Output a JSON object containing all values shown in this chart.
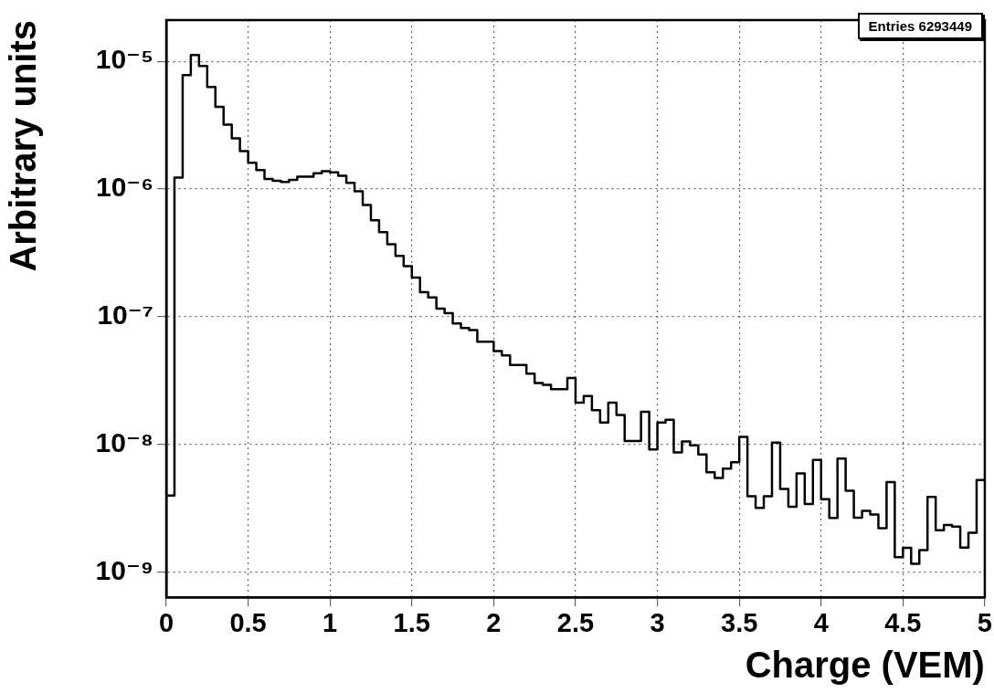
{
  "chart_data": {
    "type": "histogram",
    "xlabel": "Charge (VEM)",
    "ylabel": "Arbitrary units",
    "bins": [
      0,
      0.05,
      0.1,
      0.15,
      0.2,
      0.25,
      0.3,
      0.35,
      0.4,
      0.45,
      0.5,
      0.55,
      0.6,
      0.65,
      0.7,
      0.75,
      0.8,
      0.85,
      0.9,
      0.95,
      1,
      1.05,
      1.1,
      1.15,
      1.2,
      1.25,
      1.3,
      1.35,
      1.4,
      1.45,
      1.5,
      1.55,
      1.6,
      1.65,
      1.7,
      1.75,
      1.8,
      1.85,
      1.9,
      1.95,
      2,
      2.05,
      2.1,
      2.15,
      2.2,
      2.25,
      2.3,
      2.35,
      2.4,
      2.45,
      2.5,
      2.55,
      2.6,
      2.65,
      2.7,
      2.75,
      2.8,
      2.85,
      2.9,
      2.95,
      3,
      3.05,
      3.1,
      3.15,
      3.2,
      3.25,
      3.3,
      3.35,
      3.4,
      3.45,
      3.5,
      3.55,
      3.6,
      3.65,
      3.7,
      3.75,
      3.8,
      3.85,
      3.9,
      3.95,
      4,
      4.05,
      4.1,
      4.15,
      4.2,
      4.25,
      4.3,
      4.35,
      4.4,
      4.45,
      4.5,
      4.55,
      4.6,
      4.65,
      4.7,
      4.75,
      4.8,
      4.85,
      4.9,
      4.95,
      5
    ],
    "values": [
      4e-09,
      1.23e-06,
      7.8e-06,
      1.12e-05,
      9.2e-06,
      6.3e-06,
      4.4e-06,
      3.2e-06,
      2.5e-06,
      1.98e-06,
      1.61e-06,
      1.41e-06,
      1.2e-06,
      1.16e-06,
      1.14e-06,
      1.18e-06,
      1.25e-06,
      1.25e-06,
      1.33e-06,
      1.38e-06,
      1.35e-06,
      1.27e-06,
      1.12e-06,
      9.6e-07,
      7.5e-07,
      5.7e-07,
      4.6e-07,
      3.7e-07,
      3e-07,
      2.5e-07,
      2.03e-07,
      1.56e-07,
      1.42e-07,
      1.16e-07,
      1.07e-07,
      8.9e-08,
      8.2e-08,
      7.9e-08,
      6.4e-08,
      6.4e-08,
      5.4e-08,
      5e-08,
      4.2e-08,
      4.2e-08,
      3.6e-08,
      3.04e-08,
      2.94e-08,
      2.72e-08,
      2.72e-08,
      3.33e-08,
      2.13e-08,
      2.4e-08,
      1.86e-08,
      1.49e-08,
      2.13e-08,
      1.71e-08,
      1.07e-08,
      1.07e-08,
      1.81e-08,
      9.2e-09,
      1.49e-08,
      1.57e-08,
      8.7e-09,
      1.06e-08,
      9.9e-09,
      8.4e-09,
      6.1e-09,
      5.5e-09,
      6.5e-09,
      7.3e-09,
      1.15e-08,
      3.95e-09,
      3.2e-09,
      3.95e-09,
      1.04e-08,
      4.5e-09,
      3.27e-09,
      5.96e-09,
      3.44e-09,
      7.6e-09,
      3.74e-09,
      2.67e-09,
      7.8e-09,
      4.36e-09,
      2.69e-09,
      3.04e-09,
      2.85e-09,
      2.22e-09,
      5.1e-09,
      1.32e-09,
      1.56e-09,
      1.17e-09,
      1.5e-09,
      3.9e-09,
      2.14e-09,
      2.35e-09,
      2.29e-09,
      1.57e-09,
      2.05e-09,
      5.3e-09
    ],
    "color": "#000000",
    "xlim": [
      0,
      5
    ],
    "xticks": [
      0,
      0.5,
      1,
      1.5,
      2,
      2.5,
      3,
      3.5,
      4,
      4.5,
      5
    ],
    "ylim": [
      6.4e-10,
      2.1e-05
    ],
    "yticks": [
      {
        "value": 1e-09,
        "label": "10⁻⁹"
      },
      {
        "value": 1e-08,
        "label": "10⁻⁸"
      },
      {
        "value": 1e-07,
        "label": "10⁻⁷"
      },
      {
        "value": 1e-06,
        "label": "10⁻⁶"
      },
      {
        "value": 1e-05,
        "label": "10⁻⁵"
      }
    ],
    "log": "y",
    "grid": true,
    "legend": false,
    "annotations": [
      "Entries 6293449"
    ]
  }
}
